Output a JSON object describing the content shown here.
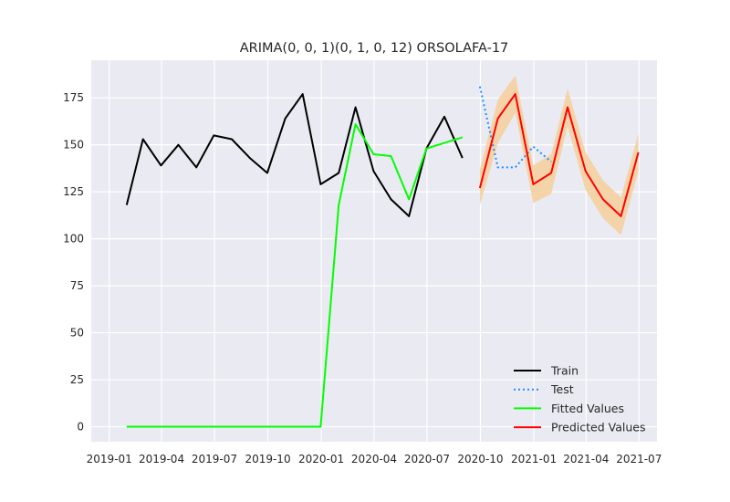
{
  "chart_data": {
    "type": "line",
    "title": "ARIMA(0, 0, 1)(0, 1, 0, 12) ORSOLAFA-17",
    "xlabel": "",
    "ylabel": "",
    "xlim": [
      "2018-12-01",
      "2021-08-01"
    ],
    "ylim": [
      -8,
      195
    ],
    "grid": true,
    "legend_position": "lower-right",
    "x_tick_labels": [
      "2019-01",
      "2019-04",
      "2019-07",
      "2019-10",
      "2020-01",
      "2020-04",
      "2020-07",
      "2020-10",
      "2021-01",
      "2021-04",
      "2021-07"
    ],
    "y_ticks": [
      0,
      25,
      50,
      75,
      100,
      125,
      150,
      175
    ],
    "series": [
      {
        "name": "Train",
        "color": "#000000",
        "style": "solid",
        "x": [
          "2019-01-31",
          "2019-02-28",
          "2019-03-31",
          "2019-04-30",
          "2019-05-31",
          "2019-06-30",
          "2019-07-31",
          "2019-08-31",
          "2019-09-30",
          "2019-10-31",
          "2019-11-30",
          "2019-12-31",
          "2020-01-31",
          "2020-02-29",
          "2020-03-31",
          "2020-04-30",
          "2020-05-31",
          "2020-06-30",
          "2020-07-31",
          "2020-08-31"
        ],
        "y": [
          118,
          153,
          139,
          150,
          138,
          155,
          153,
          143,
          135,
          164,
          177,
          129,
          135,
          170,
          136,
          121,
          112,
          148,
          165,
          143
        ]
      },
      {
        "name": "Test",
        "color": "#1e90ff",
        "style": "dotted",
        "x": [
          "2020-09-30",
          "2020-10-31",
          "2020-11-30",
          "2020-12-31",
          "2021-01-31"
        ],
        "y": [
          181,
          138,
          138,
          149,
          141
        ]
      },
      {
        "name": "Fitted Values",
        "color": "#00ff00",
        "style": "solid",
        "x": [
          "2019-01-31",
          "2019-02-28",
          "2019-03-31",
          "2019-04-30",
          "2019-05-31",
          "2019-06-30",
          "2019-07-31",
          "2019-08-31",
          "2019-09-30",
          "2019-10-31",
          "2019-11-30",
          "2019-12-31",
          "2020-01-31",
          "2020-02-29",
          "2020-03-31",
          "2020-04-30",
          "2020-05-31",
          "2020-06-30",
          "2020-07-31",
          "2020-08-31"
        ],
        "y": [
          0,
          0,
          0,
          0,
          0,
          0,
          0,
          0,
          0,
          0,
          0,
          0,
          118,
          161,
          145,
          144,
          121,
          148,
          151,
          154
        ]
      },
      {
        "name": "Predicted Values",
        "color": "#ff0000",
        "style": "solid",
        "x": [
          "2020-09-30",
          "2020-10-31",
          "2020-11-30",
          "2020-12-31",
          "2021-01-31",
          "2021-02-28",
          "2021-03-31",
          "2021-04-30",
          "2021-05-31",
          "2021-06-30"
        ],
        "y": [
          127,
          164,
          177,
          129,
          135,
          170,
          136,
          121,
          112,
          146
        ],
        "ci_lower": [
          118,
          151,
          167,
          119,
          124,
          160,
          126,
          111,
          102,
          136
        ],
        "ci_upper": [
          137,
          174,
          187,
          139,
          145,
          180,
          146,
          131,
          122,
          156
        ],
        "ci_color": "#f5cf9a"
      }
    ]
  }
}
